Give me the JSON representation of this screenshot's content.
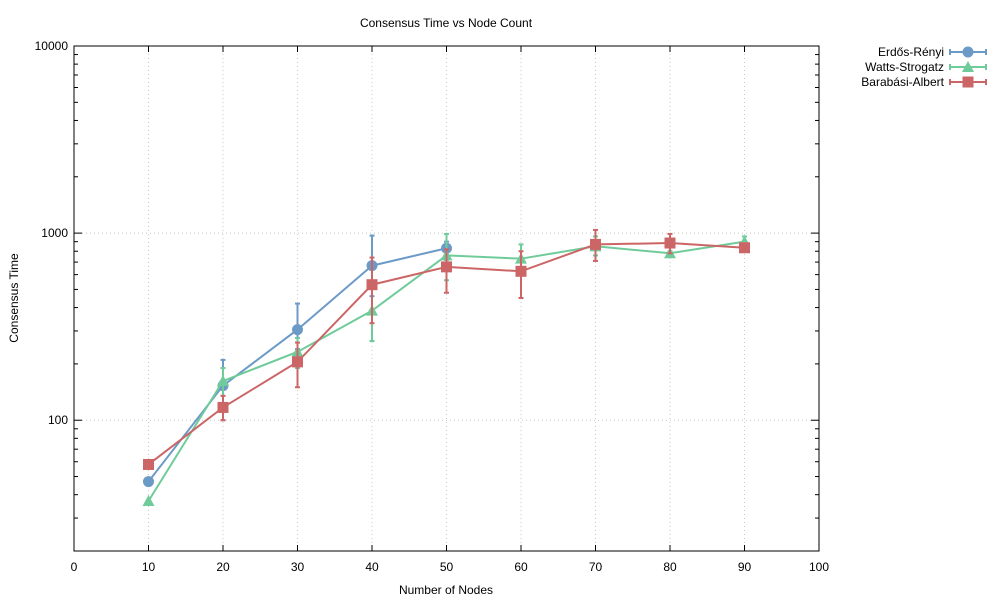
{
  "chart_data": {
    "type": "line",
    "title": "Consensus Time vs Node Count",
    "xlabel": "Number of Nodes",
    "ylabel": "Consensus Time",
    "xlim": [
      0,
      100
    ],
    "ylim": [
      20,
      10000
    ],
    "yscale": "log",
    "x_ticks": [
      0,
      10,
      20,
      30,
      40,
      50,
      60,
      70,
      80,
      90,
      100
    ],
    "y_ticks": [
      100,
      1000,
      10000
    ],
    "grid": true,
    "legend_position": "top-right outside",
    "series": [
      {
        "name": "Erdős-Rényi",
        "color": "#6b9ac7",
        "marker": "circle",
        "points": [
          {
            "x": 10,
            "y": 47
          },
          {
            "x": 20,
            "y": 153,
            "err_low": 100,
            "err_high": 210
          },
          {
            "x": 30,
            "y": 305,
            "err_low": 240,
            "err_high": 420
          },
          {
            "x": 40,
            "y": 670,
            "err_low": 460,
            "err_high": 970
          },
          {
            "x": 50,
            "y": 830,
            "err_low": 720,
            "err_high": 900
          }
        ]
      },
      {
        "name": "Watts-Strogatz",
        "color": "#6fcb9a",
        "marker": "triangle",
        "points": [
          {
            "x": 10,
            "y": 37
          },
          {
            "x": 20,
            "y": 162,
            "err_low": 135,
            "err_high": 190
          },
          {
            "x": 30,
            "y": 232,
            "err_low": 190,
            "err_high": 275
          },
          {
            "x": 40,
            "y": 385,
            "err_low": 265,
            "err_high": 540
          },
          {
            "x": 50,
            "y": 760,
            "err_low": 560,
            "err_high": 990
          },
          {
            "x": 60,
            "y": 730,
            "err_low": 600,
            "err_high": 870
          },
          {
            "x": 70,
            "y": 850,
            "err_low": 760,
            "err_high": 960
          },
          {
            "x": 80,
            "y": 780,
            "err_low": 760,
            "err_high": 800
          },
          {
            "x": 90,
            "y": 900,
            "err_low": 850,
            "err_high": 960
          }
        ]
      },
      {
        "name": "Barabási-Albert",
        "color": "#cc6666",
        "marker": "square",
        "points": [
          {
            "x": 10,
            "y": 58
          },
          {
            "x": 20,
            "y": 117,
            "err_low": 100,
            "err_high": 135
          },
          {
            "x": 30,
            "y": 205,
            "err_low": 150,
            "err_high": 260
          },
          {
            "x": 40,
            "y": 530,
            "err_low": 330,
            "err_high": 740
          },
          {
            "x": 50,
            "y": 660,
            "err_low": 480,
            "err_high": 820
          },
          {
            "x": 60,
            "y": 625,
            "err_low": 450,
            "err_high": 800
          },
          {
            "x": 70,
            "y": 870,
            "err_low": 710,
            "err_high": 1040
          },
          {
            "x": 80,
            "y": 885,
            "err_low": 780,
            "err_high": 990
          },
          {
            "x": 90,
            "y": 835
          }
        ]
      }
    ]
  }
}
